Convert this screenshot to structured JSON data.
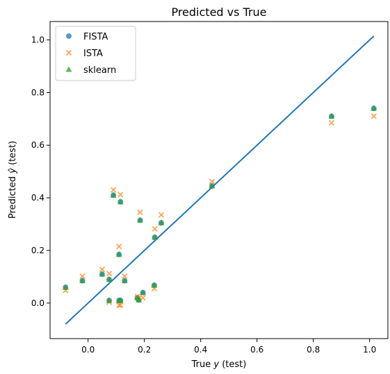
{
  "chart_data": {
    "type": "scatter",
    "title": "Predicted vs True",
    "xlabel": "True y (test)",
    "ylabel": "Predicted ŷ (test)",
    "xlim": [
      -0.135,
      1.065
    ],
    "ylim": [
      -0.135,
      1.07
    ],
    "x_ticks": [
      "0.0",
      "0.2",
      "0.4",
      "0.6",
      "0.8",
      "1.0"
    ],
    "y_ticks": [
      "0.0",
      "0.2",
      "0.4",
      "0.6",
      "0.8",
      "1.0"
    ],
    "legend_position": "top-left",
    "grid": false,
    "colors": {
      "FISTA": "#1f77b4",
      "ISTA": "#ff7f0e",
      "sklearn": "#2ca02c",
      "reference": "#1f77b4"
    },
    "x": [
      -0.08,
      -0.02,
      0.05,
      0.075,
      0.075,
      0.09,
      0.11,
      0.11,
      0.115,
      0.115,
      0.13,
      0.175,
      0.18,
      0.185,
      0.195,
      0.235,
      0.237,
      0.26,
      0.44,
      0.865,
      1.015
    ],
    "series": [
      {
        "name": "FISTA",
        "marker": "circle",
        "values": [
          0.06,
          0.085,
          0.11,
          0.01,
          0.09,
          0.41,
          0.185,
          0.01,
          0.385,
          0.01,
          0.085,
          0.02,
          0.012,
          0.315,
          0.04,
          0.068,
          0.25,
          0.305,
          0.445,
          0.71,
          0.74
        ]
      },
      {
        "name": "ISTA",
        "marker": "x",
        "values": [
          0.048,
          0.102,
          0.128,
          0.003,
          0.112,
          0.43,
          0.215,
          -0.008,
          0.412,
          -0.008,
          0.102,
          0.025,
          0.018,
          0.345,
          0.02,
          0.055,
          0.282,
          0.335,
          0.462,
          0.685,
          0.71
        ]
      },
      {
        "name": "sklearn",
        "marker": "triangle",
        "values": [
          0.06,
          0.085,
          0.11,
          0.01,
          0.09,
          0.41,
          0.185,
          0.01,
          0.385,
          0.01,
          0.085,
          0.02,
          0.012,
          0.315,
          0.04,
          0.068,
          0.25,
          0.305,
          0.445,
          0.71,
          0.74
        ]
      }
    ],
    "reference_line": {
      "x": [
        -0.08,
        1.015
      ],
      "y": [
        -0.08,
        1.015
      ]
    }
  }
}
